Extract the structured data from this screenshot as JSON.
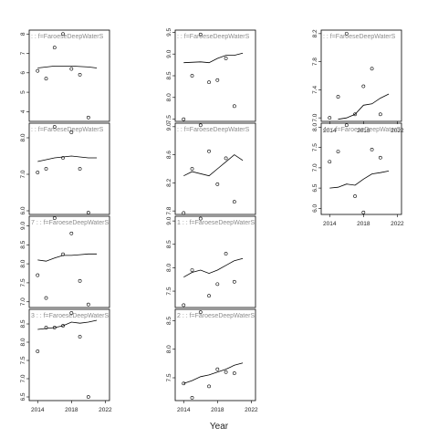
{
  "chart_data": {
    "type": "scatter",
    "xlabel": "Year",
    "x_ticks": [
      2014,
      2018,
      2022
    ],
    "x_range": [
      2013,
      2022.5
    ],
    "grid": false,
    "panels": [
      {
        "title": ": : f=FaroeseDeepWaterS",
        "ylim": [
          3.5,
          8.2
        ],
        "yticks": [
          "4",
          "5",
          "6",
          "7",
          "8"
        ],
        "ytick_values": [
          4,
          5,
          6,
          7,
          8
        ],
        "points": [
          [
            2014,
            6.1
          ],
          [
            2015,
            5.7
          ],
          [
            2016,
            7.3
          ],
          [
            2017,
            8.0
          ],
          [
            2018,
            6.2
          ],
          [
            2019,
            5.9
          ],
          [
            2020,
            3.7
          ]
        ],
        "fit": [
          [
            2014,
            6.25
          ],
          [
            2016,
            6.35
          ],
          [
            2018,
            6.35
          ],
          [
            2020,
            6.3
          ],
          [
            2021,
            6.25
          ]
        ]
      },
      {
        "title": ": : f=FaroeseDeepWaterS",
        "ylim": [
          7.45,
          9.55
        ],
        "yticks": [
          "7.5",
          "8.0",
          "8.5",
          "9.0",
          "9.5"
        ],
        "ytick_values": [
          7.5,
          8.0,
          8.5,
          9.0,
          9.5
        ],
        "points": [
          [
            2014,
            7.5
          ],
          [
            2015,
            8.5
          ],
          [
            2016,
            9.45
          ],
          [
            2017,
            8.35
          ],
          [
            2018,
            8.4
          ],
          [
            2019,
            8.9
          ],
          [
            2020,
            7.8
          ]
        ],
        "fit": [
          [
            2014,
            8.8
          ],
          [
            2016,
            8.82
          ],
          [
            2017,
            8.8
          ],
          [
            2018,
            8.9
          ],
          [
            2019,
            8.97
          ],
          [
            2020,
            8.97
          ],
          [
            2021,
            9.02
          ]
        ]
      },
      {
        "title": ": : f=FaroeseDeepWaterS",
        "ylim": [
          6.95,
          8.25
        ],
        "yticks": [
          "7.0",
          "7.4",
          "7.8",
          "8.2"
        ],
        "ytick_values": [
          7.0,
          7.4,
          7.8,
          8.2
        ],
        "points": [
          [
            2014,
            7.0
          ],
          [
            2015,
            7.3
          ],
          [
            2016,
            8.2
          ],
          [
            2017,
            7.05
          ],
          [
            2018,
            7.45
          ],
          [
            2019,
            7.7
          ],
          [
            2020,
            7.05
          ]
        ],
        "fit": [
          [
            2015,
            6.98
          ],
          [
            2016,
            7.0
          ],
          [
            2017,
            7.05
          ],
          [
            2018,
            7.18
          ],
          [
            2019,
            7.2
          ],
          [
            2020,
            7.28
          ],
          [
            2021,
            7.34
          ]
        ]
      },
      {
        "title": ": : f=FaroeseDeepWaterS",
        "ylim": [
          5.9,
          8.4
        ],
        "yticks": [
          "6.0",
          "7.0",
          "8.0"
        ],
        "ytick_values": [
          6.0,
          7.0,
          8.0
        ],
        "points": [
          [
            2014,
            7.05
          ],
          [
            2015,
            7.15
          ],
          [
            2016,
            8.3
          ],
          [
            2017,
            7.45
          ],
          [
            2018,
            8.15
          ],
          [
            2019,
            7.15
          ],
          [
            2020,
            5.95
          ]
        ],
        "fit": [
          [
            2014,
            7.35
          ],
          [
            2016,
            7.45
          ],
          [
            2018,
            7.5
          ],
          [
            2020,
            7.45
          ],
          [
            2021,
            7.45
          ]
        ]
      },
      {
        "title": ": : f=FaroeseDeepWaterS",
        "ylim": [
          7.75,
          9.05
        ],
        "yticks": [
          "7.8",
          "8.2",
          "8.6",
          "9.0"
        ],
        "ytick_values": [
          7.8,
          8.2,
          8.6,
          9.0
        ],
        "points": [
          [
            2014,
            7.77
          ],
          [
            2015,
            8.4
          ],
          [
            2016,
            9.02
          ],
          [
            2017,
            8.65
          ],
          [
            2018,
            8.18
          ],
          [
            2019,
            8.55
          ],
          [
            2020,
            7.93
          ]
        ],
        "fit": [
          [
            2014,
            8.3
          ],
          [
            2015,
            8.36
          ],
          [
            2017,
            8.3
          ],
          [
            2018,
            8.4
          ],
          [
            2019,
            8.5
          ],
          [
            2020,
            8.6
          ],
          [
            2021,
            8.52
          ]
        ]
      },
      {
        "title": "4 : : f=FaroeseDeepWaterS",
        "ylim": [
          5.85,
          8.1
        ],
        "yticks": [
          "6.0",
          "6.5",
          "7.0",
          "7.5",
          "8.0"
        ],
        "ytick_values": [
          6.0,
          6.5,
          7.0,
          7.5,
          8.0
        ],
        "points": [
          [
            2014,
            7.15
          ],
          [
            2015,
            7.4
          ],
          [
            2016,
            8.05
          ],
          [
            2017,
            6.3
          ],
          [
            2018,
            5.9
          ],
          [
            2019,
            7.45
          ],
          [
            2020,
            7.25
          ]
        ],
        "fit": [
          [
            2014,
            6.5
          ],
          [
            2015,
            6.52
          ],
          [
            2016,
            6.6
          ],
          [
            2017,
            6.57
          ],
          [
            2018,
            6.72
          ],
          [
            2019,
            6.85
          ],
          [
            2020,
            6.88
          ],
          [
            2021,
            6.92
          ]
        ]
      },
      {
        "title": "7 : : f=FaroeseDeepWaterS",
        "ylim": [
          6.85,
          9.25
        ],
        "yticks": [
          "7.0",
          "7.5",
          "8.0",
          "8.5",
          "9.0"
        ],
        "ytick_values": [
          7.0,
          7.5,
          8.0,
          8.5,
          9.0
        ],
        "points": [
          [
            2014,
            7.7
          ],
          [
            2015,
            7.1
          ],
          [
            2016,
            9.2
          ],
          [
            2017,
            8.25
          ],
          [
            2018,
            8.8
          ],
          [
            2019,
            7.55
          ],
          [
            2020,
            6.93
          ]
        ],
        "fit": [
          [
            2014,
            8.1
          ],
          [
            2015,
            8.07
          ],
          [
            2016,
            8.15
          ],
          [
            2017,
            8.22
          ],
          [
            2018,
            8.22
          ],
          [
            2019,
            8.24
          ],
          [
            2020,
            8.26
          ],
          [
            2021,
            8.26
          ]
        ]
      },
      {
        "title": "1 : : f=FaroeseDeepWaterS",
        "ylim": [
          7.15,
          9.1
        ],
        "yticks": [
          "7.5",
          "8.0",
          "8.5",
          "9.0"
        ],
        "ytick_values": [
          7.5,
          8.0,
          8.5,
          9.0
        ],
        "points": [
          [
            2014,
            7.2
          ],
          [
            2015,
            7.95
          ],
          [
            2016,
            9.05
          ],
          [
            2017,
            7.4
          ],
          [
            2018,
            7.65
          ],
          [
            2019,
            8.3
          ],
          [
            2020,
            7.7
          ]
        ],
        "fit": [
          [
            2014,
            7.8
          ],
          [
            2015,
            7.9
          ],
          [
            2016,
            7.95
          ],
          [
            2017,
            7.88
          ],
          [
            2018,
            7.95
          ],
          [
            2019,
            8.05
          ],
          [
            2020,
            8.15
          ],
          [
            2021,
            8.2
          ]
        ]
      },
      {
        "title": "3 : : f=FaroeseDeepWaterS",
        "ylim": [
          6.4,
          8.9
        ],
        "yticks": [
          "6.5",
          "7.0",
          "7.5",
          "8.0",
          "8.5"
        ],
        "ytick_values": [
          6.5,
          7.0,
          7.5,
          8.0,
          8.5
        ],
        "points": [
          [
            2014,
            7.75
          ],
          [
            2015,
            8.4
          ],
          [
            2016,
            8.4
          ],
          [
            2017,
            8.45
          ],
          [
            2018,
            8.8
          ],
          [
            2019,
            8.15
          ],
          [
            2020,
            6.5
          ]
        ],
        "fit": [
          [
            2014,
            8.35
          ],
          [
            2016,
            8.4
          ],
          [
            2017,
            8.45
          ],
          [
            2018,
            8.55
          ],
          [
            2019,
            8.52
          ],
          [
            2020,
            8.55
          ],
          [
            2021,
            8.6
          ]
        ]
      },
      {
        "title": "2 : : f=FaroeseDeepWaterS",
        "ylim": [
          7.1,
          8.7
        ],
        "yticks": [
          "7.5",
          "8.0",
          "8.5"
        ],
        "ytick_values": [
          7.5,
          8.0,
          8.5
        ],
        "points": [
          [
            2014,
            7.4
          ],
          [
            2015,
            7.15
          ],
          [
            2016,
            8.65
          ],
          [
            2017,
            7.35
          ],
          [
            2018,
            7.65
          ],
          [
            2019,
            7.6
          ],
          [
            2020,
            7.58
          ]
        ],
        "fit": [
          [
            2014,
            7.4
          ],
          [
            2015,
            7.45
          ],
          [
            2016,
            7.52
          ],
          [
            2017,
            7.55
          ],
          [
            2018,
            7.6
          ],
          [
            2019,
            7.65
          ],
          [
            2020,
            7.72
          ],
          [
            2021,
            7.76
          ]
        ]
      }
    ]
  }
}
